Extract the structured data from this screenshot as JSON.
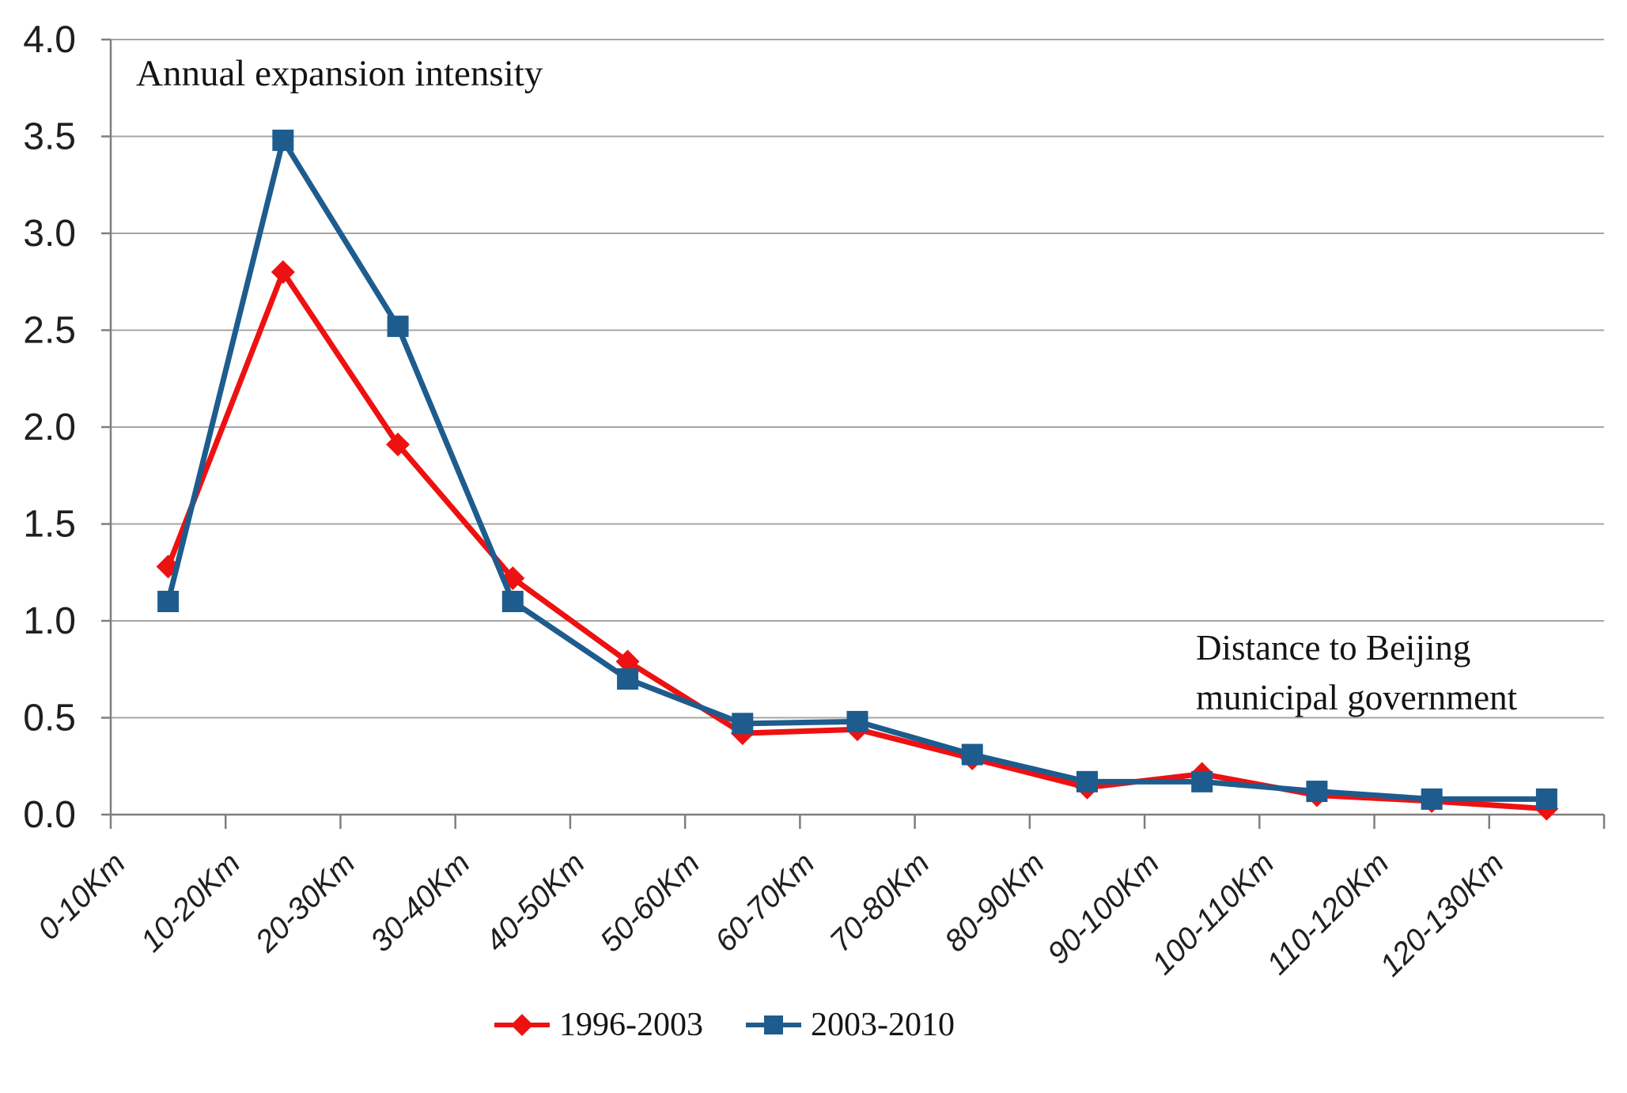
{
  "chart_data": {
    "type": "line",
    "title": "Annual expansion intensity",
    "axis_annotation_lines": [
      "Distance to Beijing",
      "municipal government"
    ],
    "categories": [
      "0-10Km",
      "10-20Km",
      "20-30Km",
      "30-40Km",
      "40-50Km",
      "50-60Km",
      "60-70Km",
      "70-80Km",
      "80-90Km",
      "90-100Km",
      "100-110Km",
      "110-120Km",
      "120-130Km"
    ],
    "series": [
      {
        "name": "1996-2003",
        "marker": "diamond",
        "color": "#ee1111",
        "values": [
          1.28,
          2.8,
          1.91,
          1.22,
          0.79,
          0.42,
          0.44,
          0.29,
          0.14,
          0.21,
          0.1,
          0.07,
          0.03
        ]
      },
      {
        "name": "2003-2010",
        "marker": "square",
        "color": "#1e5c8e",
        "values": [
          1.1,
          3.48,
          2.52,
          1.1,
          0.7,
          0.47,
          0.48,
          0.31,
          0.17,
          0.17,
          0.12,
          0.08,
          0.08
        ]
      }
    ],
    "ylim": [
      0.0,
      4.0
    ],
    "ytick_step": 0.5,
    "yticks": [
      "0.0",
      "0.5",
      "1.0",
      "1.5",
      "2.0",
      "2.5",
      "3.0",
      "3.5",
      "4.0"
    ],
    "xlabel": "",
    "ylabel": "",
    "grid": true,
    "legend_position": "bottom"
  },
  "colors": {
    "gridline": "#a6a6a6",
    "axis": "#7f7f7f",
    "tick_text": "#1f1f1f",
    "title_text": "#141414",
    "background": "#ffffff"
  }
}
